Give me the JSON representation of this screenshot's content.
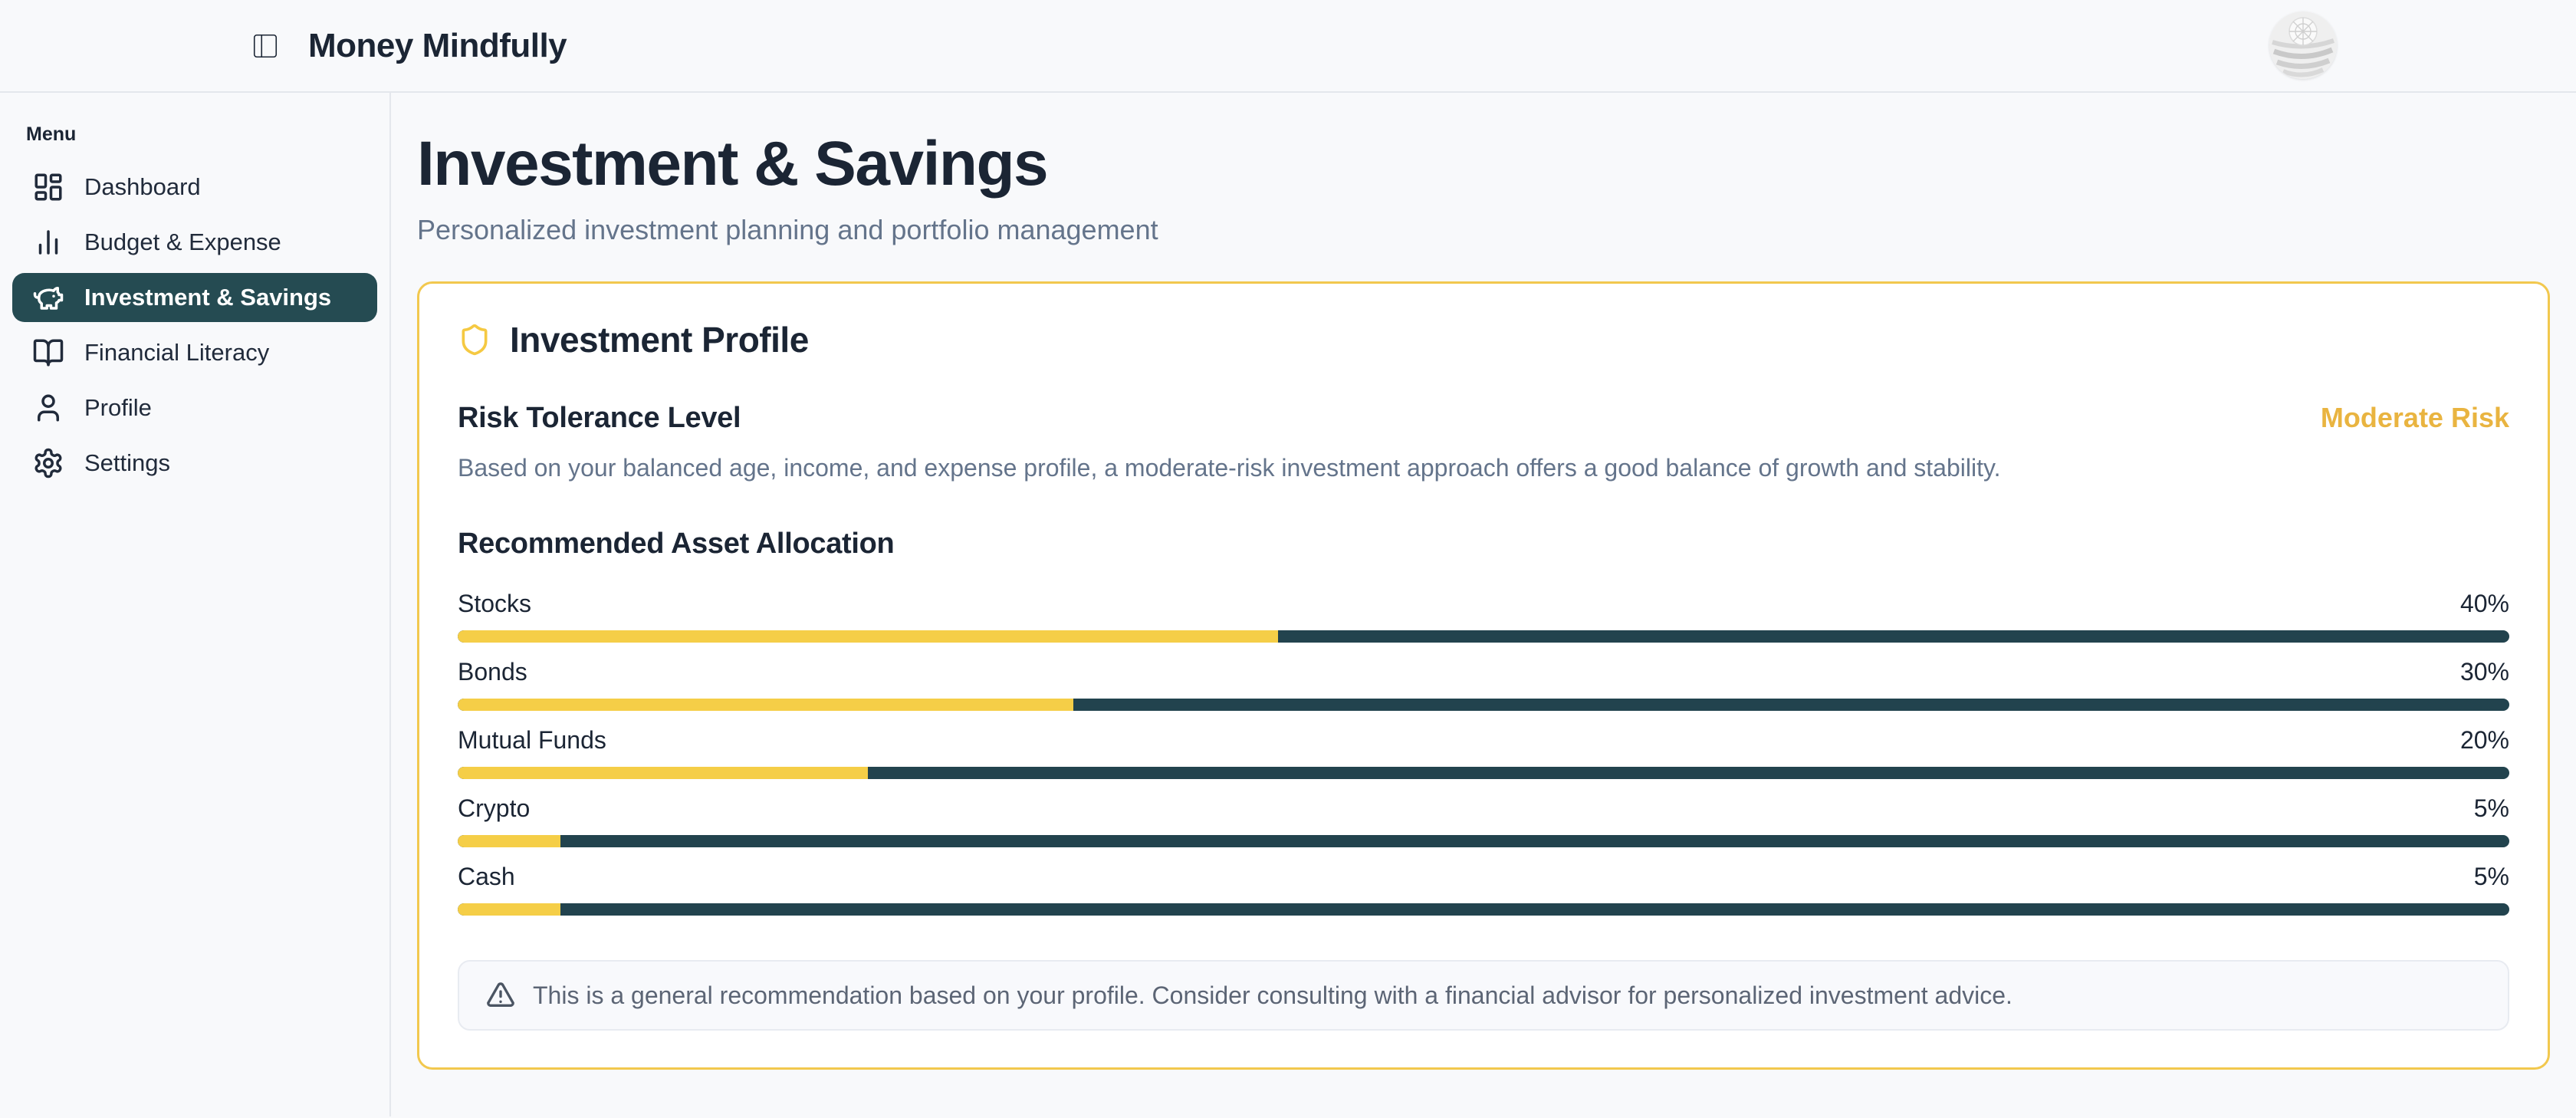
{
  "app": {
    "title": "Money Mindfully"
  },
  "header": {
    "menu_toggle_icon": "panel-left-icon",
    "avatar_icon": "profile-photo-avatar"
  },
  "sidebar": {
    "section_label": "Menu",
    "items": [
      {
        "label": "Dashboard",
        "icon": "dashboard-icon",
        "active": false
      },
      {
        "label": "Budget & Expense",
        "icon": "bar-chart-icon",
        "active": false
      },
      {
        "label": "Investment & Savings",
        "icon": "piggy-bank-icon",
        "active": true
      },
      {
        "label": "Financial Literacy",
        "icon": "book-open-icon",
        "active": false
      },
      {
        "label": "Profile",
        "icon": "user-icon",
        "active": false
      },
      {
        "label": "Settings",
        "icon": "gear-icon",
        "active": false
      }
    ]
  },
  "page": {
    "title": "Investment & Savings",
    "subtitle": "Personalized investment planning and portfolio management"
  },
  "card": {
    "title": "Investment Profile",
    "title_icon": "shield-icon",
    "risk": {
      "heading": "Risk Tolerance Level",
      "level": "Moderate Risk",
      "description": "Based on your balanced age, income, and expense profile, a moderate-risk investment approach offers a good balance of growth and stability."
    },
    "allocation": {
      "heading": "Recommended Asset Allocation",
      "items": [
        {
          "label": "Stocks",
          "percent": 40,
          "display": "40%"
        },
        {
          "label": "Bonds",
          "percent": 30,
          "display": "30%"
        },
        {
          "label": "Mutual Funds",
          "percent": 20,
          "display": "20%"
        },
        {
          "label": "Crypto",
          "percent": 5,
          "display": "5%"
        },
        {
          "label": "Cash",
          "percent": 5,
          "display": "5%"
        }
      ]
    },
    "disclaimer": {
      "icon": "warning-triangle-icon",
      "text": "This is a general recommendation based on your profile. Consider consulting with a financial advisor for personalized investment advice."
    }
  },
  "colors": {
    "accent_gold": "#F2C84E",
    "gold_text": "#E9B440",
    "bar_fill_yellow": "#F5CE47",
    "bar_track_teal": "#22434E",
    "active_item_bg": "#254B52",
    "navy_text": "#1B2534",
    "muted_text": "#64748B",
    "page_bg": "#F8F9FB"
  }
}
